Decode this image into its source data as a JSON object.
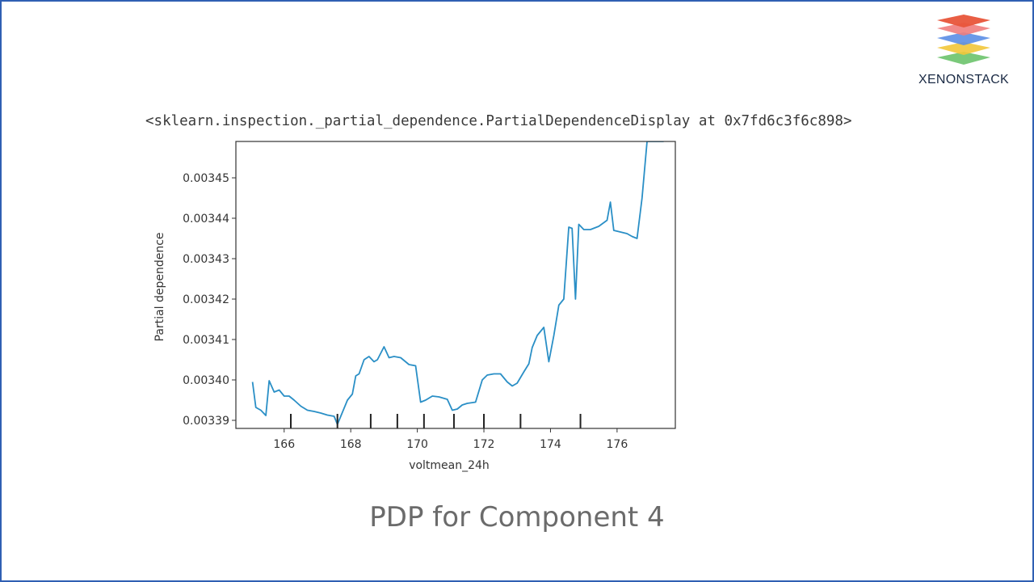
{
  "brand": {
    "name": "XENONSTACK",
    "icon": "layered-stack-logo-icon",
    "layer_colors": [
      "#e8553a",
      "#f07d7d",
      "#5b8ee6",
      "#f2c73a",
      "#6cc36b"
    ]
  },
  "output_repr": "<sklearn.inspection._partial_dependence.PartialDependenceDisplay at 0x7fd6c3f6c898>",
  "caption": "PDP for Component 4",
  "chart_data": {
    "type": "line",
    "title": "",
    "xlabel": "voltmean_24h",
    "ylabel": "Partial dependence",
    "xlim": [
      164.55,
      177.75
    ],
    "ylim": [
      0.003388,
      0.003459
    ],
    "xticks": [
      166,
      168,
      170,
      172,
      174,
      176
    ],
    "xtick_labels": [
      "166",
      "168",
      "170",
      "172",
      "174",
      "176"
    ],
    "yticks": [
      0.00339,
      0.0034,
      0.00341,
      0.00342,
      0.00343,
      0.00344,
      0.00345
    ],
    "ytick_labels": [
      "0.00339",
      "0.00340",
      "0.00341",
      "0.00342",
      "0.00343",
      "0.00344",
      "0.00345"
    ],
    "line_color": "#2a8fc6",
    "deciles": [
      166.2,
      167.6,
      168.6,
      169.4,
      170.2,
      171.1,
      172.0,
      173.1,
      174.9
    ],
    "x": [
      165.05,
      165.15,
      165.3,
      165.45,
      165.55,
      165.7,
      165.85,
      166.0,
      166.15,
      166.3,
      166.5,
      166.7,
      166.9,
      167.1,
      167.3,
      167.5,
      167.6,
      167.75,
      167.9,
      168.05,
      168.15,
      168.25,
      168.4,
      168.55,
      168.7,
      168.8,
      169.0,
      169.15,
      169.3,
      169.5,
      169.75,
      169.95,
      170.1,
      170.25,
      170.45,
      170.65,
      170.9,
      171.05,
      171.2,
      171.35,
      171.5,
      171.75,
      171.95,
      172.1,
      172.3,
      172.5,
      172.7,
      172.85,
      173.0,
      173.2,
      173.35,
      173.45,
      173.6,
      173.8,
      173.95,
      174.1,
      174.25,
      174.4,
      174.55,
      174.65,
      174.75,
      174.85,
      175.0,
      175.2,
      175.45,
      175.7,
      175.8,
      175.9,
      176.0,
      176.3,
      176.45,
      176.6,
      176.75,
      176.9,
      177.05,
      177.15,
      177.35,
      177.4
    ],
    "y": [
      0.0033995,
      0.0033932,
      0.0033925,
      0.0033912,
      0.0033998,
      0.003397,
      0.0033975,
      0.003396,
      0.003396,
      0.003395,
      0.0033935,
      0.0033925,
      0.0033922,
      0.0033918,
      0.0033913,
      0.003391,
      0.003389,
      0.003392,
      0.003395,
      0.0033965,
      0.003401,
      0.0034015,
      0.003405,
      0.0034058,
      0.0034045,
      0.003405,
      0.0034082,
      0.0034055,
      0.0034058,
      0.0034055,
      0.0034038,
      0.0034035,
      0.0033945,
      0.003395,
      0.003396,
      0.0033958,
      0.0033952,
      0.0033925,
      0.0033928,
      0.0033938,
      0.0033942,
      0.0033945,
      0.0034,
      0.0034012,
      0.0034015,
      0.0034015,
      0.0033995,
      0.0033985,
      0.0033992,
      0.003402,
      0.003404,
      0.003408,
      0.003411,
      0.003413,
      0.0034045,
      0.003411,
      0.0034185,
      0.00342,
      0.0034378,
      0.0034375,
      0.00342,
      0.0034385,
      0.0034372,
      0.0034372,
      0.003438,
      0.0034395,
      0.003444,
      0.003437,
      0.0034368,
      0.0034362,
      0.0034355,
      0.003435,
      0.003445,
      0.003459,
      0.003459,
      0.003459,
      0.003459,
      0.003459
    ]
  }
}
